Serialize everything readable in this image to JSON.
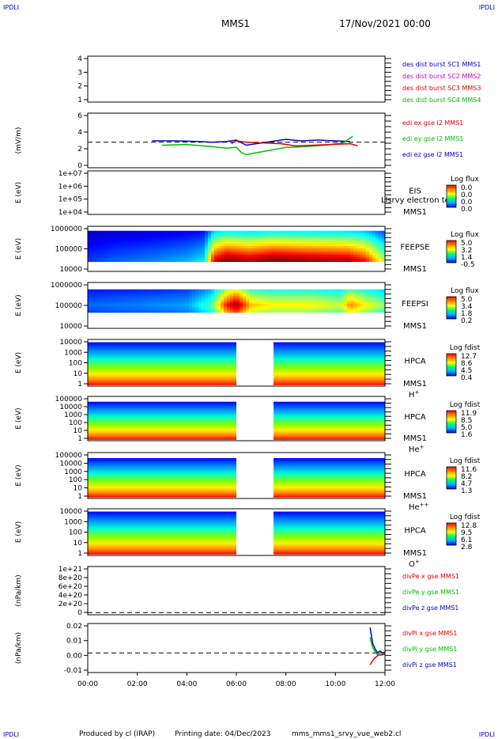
{
  "header": {
    "corner_left": "IPDLI",
    "corner_right": "IPDLI",
    "spacecraft": "MMS1",
    "datetime": "17/Nov/2021 00:00"
  },
  "footer": {
    "produced_by": "Produced by cl (IRAP)",
    "printing_date": "Printing date: 04/Dec/2023",
    "filename": "mms_mms1_srvy_vue_web2.cl",
    "corner_left": "IPDLI",
    "corner_right": "IPDLI"
  },
  "colors": {
    "blue": "#0000cc",
    "magenta": "#cc00cc",
    "red": "#dd0000",
    "green": "#00bb00"
  },
  "chart_data": [
    {
      "type": "line",
      "panel": "des-dist-burst",
      "yticks": [
        "1",
        "2",
        "3",
        "4"
      ],
      "ylim": [
        0.5,
        4.5
      ],
      "legend": [
        {
          "label": "des dist burst SC1 MMS1",
          "color": "#0000cc"
        },
        {
          "label": "des dist burst SC2 MMS2",
          "color": "#cc00cc"
        },
        {
          "label": "des dist burst SC3 MMS3",
          "color": "#dd0000"
        },
        {
          "label": "des dist burst SC4 MMS4",
          "color": "#00bb00"
        }
      ]
    },
    {
      "type": "line",
      "panel": "edi-e-field",
      "ylabel": "(mV/m)",
      "yticks": [
        "0",
        "2",
        "4",
        "6"
      ],
      "ylim": [
        -0.5,
        7
      ],
      "legend": [
        {
          "label": "edi ex gse l2 MMS1",
          "color": "#dd0000"
        },
        {
          "label": "edi ey gse l2 MMS1",
          "color": "#00bb00"
        },
        {
          "label": "edi ez gse l2 MMS1",
          "color": "#0000cc"
        }
      ],
      "segments_hours": [
        [
          0.9,
          1.4
        ],
        [
          2.6,
          6.4
        ],
        [
          7.8,
          10.9
        ],
        [
          11.4,
          12.0
        ]
      ],
      "series": [
        {
          "color": "#0000cc",
          "x": [
            2.6,
            3.5,
            4.5,
            5.0,
            5.6,
            6.0,
            6.4,
            8.0,
            8.6,
            9.3,
            10.0,
            10.6
          ],
          "values": [
            3.2,
            3.2,
            3.1,
            3.0,
            3.1,
            3.3,
            2.6,
            3.4,
            3.2,
            3.3,
            3.2,
            3.1
          ]
        },
        {
          "color": "#00bb00",
          "x": [
            3.0,
            4.0,
            5.0,
            5.6,
            6.0,
            6.2,
            6.4,
            8.0,
            8.8,
            9.6,
            10.3,
            10.7
          ],
          "values": [
            2.6,
            2.7,
            2.4,
            2.2,
            2.3,
            1.6,
            1.3,
            2.3,
            2.4,
            2.6,
            2.9,
            3.8
          ]
        },
        {
          "color": "#dd0000",
          "x": [
            5.8,
            6.0,
            6.4,
            7.8,
            8.4,
            10.6,
            10.9
          ],
          "values": [
            2.8,
            3.2,
            3.0,
            2.8,
            2.5,
            2.8,
            2.5
          ]
        }
      ]
    },
    {
      "type": "heatmap",
      "panel": "eis",
      "ylabel": "E (eV)",
      "yticks": [
        "1e+04",
        "1e+05",
        "1e+06",
        "1e+07"
      ],
      "label1": "EIS",
      "label2": "MMS1",
      "overlay_text": "Llsrvy electron tof",
      "colorbar": {
        "title": "Log flux",
        "ticks": [
          "0.0",
          "0.0",
          "0.0",
          "0.0"
        ]
      }
    },
    {
      "type": "heatmap",
      "panel": "feeps-electron",
      "ylabel": "E (eV)",
      "yticks": [
        "10000",
        "100000",
        "1000000"
      ],
      "label1": "FEEPSE",
      "label2": "MMS1",
      "colorbar": {
        "title": "Log flux",
        "ticks": [
          "5.0",
          "3.2",
          "1.4",
          "-0.5"
        ]
      },
      "intensity_by_hour": [
        [
          0,
          0.15
        ],
        [
          1,
          0.18
        ],
        [
          2,
          0.2
        ],
        [
          3,
          0.22
        ],
        [
          4,
          0.25
        ],
        [
          4.7,
          0.3
        ],
        [
          5.1,
          0.75
        ],
        [
          5.6,
          0.85
        ],
        [
          6.5,
          0.8
        ],
        [
          7.5,
          0.85
        ],
        [
          9,
          0.82
        ],
        [
          10.5,
          0.8
        ],
        [
          11.2,
          0.72
        ],
        [
          12,
          0.45
        ]
      ]
    },
    {
      "type": "heatmap",
      "panel": "feeps-ion",
      "ylabel": "E (eV)",
      "yticks": [
        "10000",
        "100000",
        "1000000"
      ],
      "label1": "FEEPSI",
      "label2": "MMS1",
      "colorbar": {
        "title": "Log flux",
        "ticks": [
          "5.0",
          "3.4",
          "1.8",
          "0.2"
        ]
      },
      "intensity_by_hour": [
        [
          0,
          0.2
        ],
        [
          2,
          0.22
        ],
        [
          4,
          0.25
        ],
        [
          5,
          0.4
        ],
        [
          5.6,
          0.75
        ],
        [
          6.0,
          0.85
        ],
        [
          6.6,
          0.6
        ],
        [
          7.5,
          0.55
        ],
        [
          9,
          0.55
        ],
        [
          10.2,
          0.5
        ],
        [
          10.6,
          0.65
        ],
        [
          11.2,
          0.55
        ],
        [
          12,
          0.45
        ]
      ]
    },
    {
      "type": "heatmap",
      "panel": "hpca-h",
      "ylabel": "E (eV)",
      "yticks": [
        "1",
        "10",
        "100",
        "1000",
        "10000"
      ],
      "label1": "HPCA",
      "label2": "MMS1",
      "species": "H",
      "species_sup": "+",
      "gap_hours": [
        6.0,
        7.5
      ],
      "colorbar": {
        "title": "Log fdist",
        "ticks": [
          "12.7",
          "8.6",
          "4.5",
          "0.4"
        ]
      }
    },
    {
      "type": "heatmap",
      "panel": "hpca-he1",
      "ylabel": "E (eV)",
      "yticks": [
        "1",
        "10",
        "100",
        "1000",
        "10000",
        "100000"
      ],
      "label1": "HPCA",
      "label2": "MMS1",
      "species": "He",
      "species_sup": "+",
      "gap_hours": [
        6.0,
        7.5
      ],
      "colorbar": {
        "title": "Log fdist",
        "ticks": [
          "11.9",
          "8.5",
          "5.0",
          "1.6"
        ]
      }
    },
    {
      "type": "heatmap",
      "panel": "hpca-he2",
      "ylabel": "E (eV)",
      "yticks": [
        "1",
        "10",
        "100",
        "1000",
        "10000",
        "100000"
      ],
      "label1": "HPCA",
      "label2": "MMS1",
      "species": "He",
      "species_sup": "++",
      "gap_hours": [
        6.0,
        7.5
      ],
      "colorbar": {
        "title": "Log fdist",
        "ticks": [
          "11.6",
          "8.2",
          "4.7",
          "1.3"
        ]
      }
    },
    {
      "type": "heatmap",
      "panel": "hpca-o",
      "ylabel": "E (eV)",
      "yticks": [
        "1",
        "10",
        "100",
        "1000",
        "10000"
      ],
      "label1": "HPCA",
      "label2": "MMS1",
      "species": "O",
      "species_sup": "+",
      "gap_hours": [
        6.0,
        7.5
      ],
      "colorbar": {
        "title": "Log fdist",
        "ticks": [
          "12.8",
          "9.5",
          "6.1",
          "2.8"
        ]
      }
    },
    {
      "type": "line",
      "panel": "divpe",
      "ylabel": "(nPa/km)",
      "yticks": [
        "0",
        "2e+20",
        "4e+20",
        "6e+20",
        "8e+20",
        "1e+21"
      ],
      "ylim": [
        -5e+19,
        1.05e+21
      ],
      "legend": [
        {
          "label": "divPe x gse MMS1",
          "color": "#dd0000"
        },
        {
          "label": "divPe y gse MMS1",
          "color": "#00bb00"
        },
        {
          "label": "divPe z gse MMS1",
          "color": "#0000cc"
        }
      ]
    },
    {
      "type": "line",
      "panel": "divpi",
      "ylabel": "(nPa/km)",
      "yticks": [
        "-0.01",
        "0.00",
        "0.01",
        "0.02"
      ],
      "ylim": [
        -0.02,
        0.03
      ],
      "legend": [
        {
          "label": "divPi x gse MMS1",
          "color": "#dd0000"
        },
        {
          "label": "divPi y gse MMS1",
          "color": "#00bb00"
        },
        {
          "label": "divPi z gse MMS1",
          "color": "#0000cc"
        }
      ],
      "series": [
        {
          "color": "#0000cc",
          "x": [
            11.4,
            11.5,
            11.6,
            11.7,
            11.8,
            11.9,
            12.0
          ],
          "values": [
            0.026,
            0.01,
            0.004,
            0.0,
            0.002,
            0.0,
            0.001
          ]
        },
        {
          "color": "#00bb00",
          "x": [
            11.4,
            11.5,
            11.6,
            11.7,
            11.8,
            11.9,
            12.0
          ],
          "values": [
            0.016,
            0.006,
            0.001,
            -0.002,
            0.0,
            -0.001,
            0.0
          ]
        },
        {
          "color": "#dd0000",
          "x": [
            11.4,
            11.5,
            11.6,
            11.7,
            11.8,
            11.9,
            12.0
          ],
          "values": [
            -0.012,
            -0.008,
            -0.005,
            -0.003,
            -0.002,
            -0.002,
            -0.001
          ]
        }
      ]
    }
  ],
  "xaxis": {
    "xlim": [
      0,
      12
    ],
    "ticks": [
      "00:00",
      "02:00",
      "04:00",
      "06:00",
      "08:00",
      "10:00",
      "12:00"
    ]
  }
}
